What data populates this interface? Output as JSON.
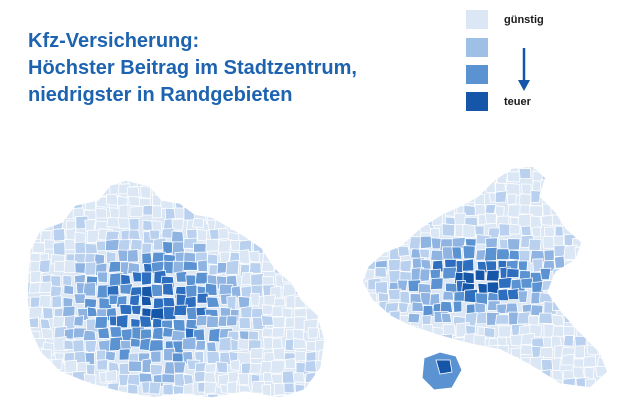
{
  "title": {
    "line1": "Kfz-Versicherung:",
    "line2": "Höchster Beitrag im Stadtzentrum,",
    "line3": "niedrigster in Randgebieten"
  },
  "legend": {
    "top_label": "günstig",
    "bottom_label": "teuer",
    "colors": [
      "#dce7f5",
      "#9fc0e6",
      "#5b93d2",
      "#1656a8"
    ]
  },
  "maps": {
    "city_a": {
      "level_colors": [
        "#dce7f5",
        "#b9d1ee",
        "#8fb4e2",
        "#5b93d2",
        "#2e6ebf",
        "#1656a8"
      ]
    },
    "city_b": {
      "level_colors": [
        "#dce7f5",
        "#b9d1ee",
        "#8fb4e2",
        "#5b93d2",
        "#2e6ebf",
        "#1656a8"
      ]
    }
  }
}
